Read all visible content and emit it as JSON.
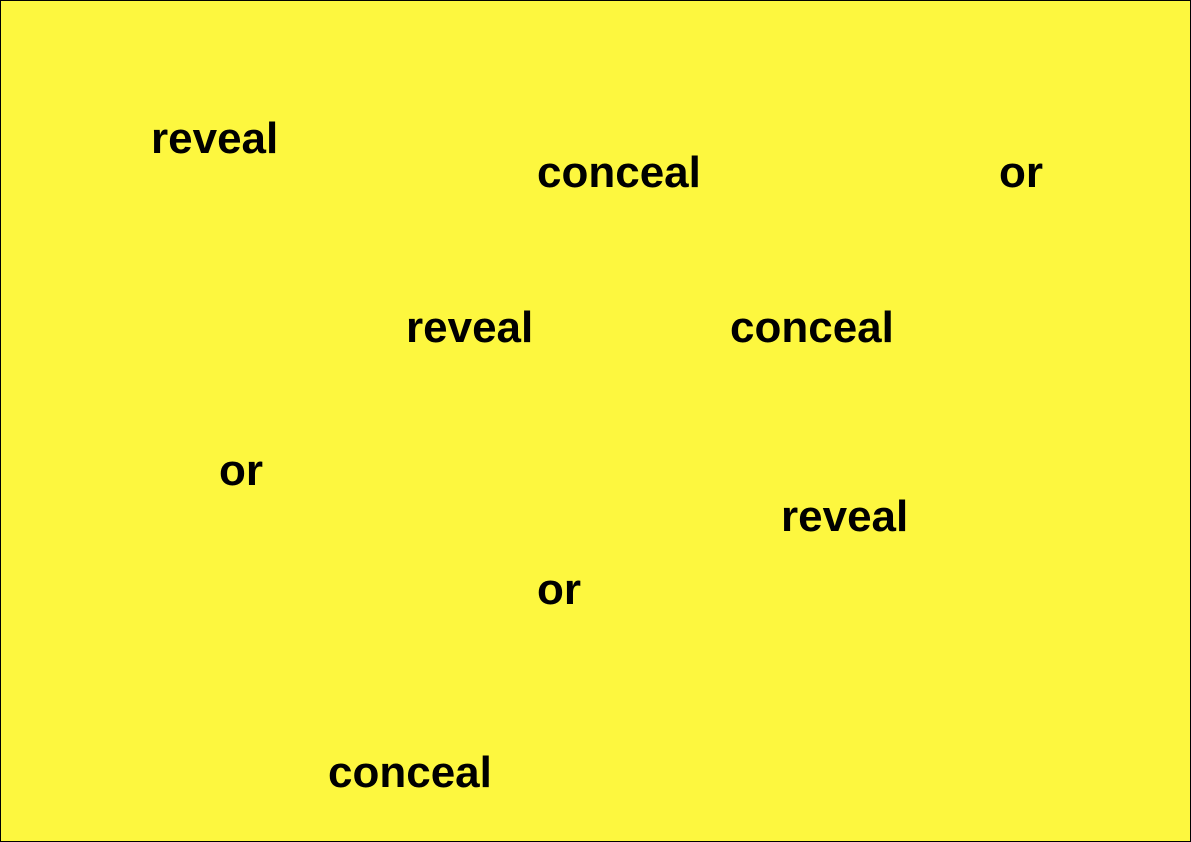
{
  "background_color": "#fdf73f",
  "text_color": "#000000",
  "words": [
    "reveal",
    "conceal",
    "or",
    "reveal",
    "conceal",
    "or",
    "reveal",
    "or",
    "conceal"
  ]
}
